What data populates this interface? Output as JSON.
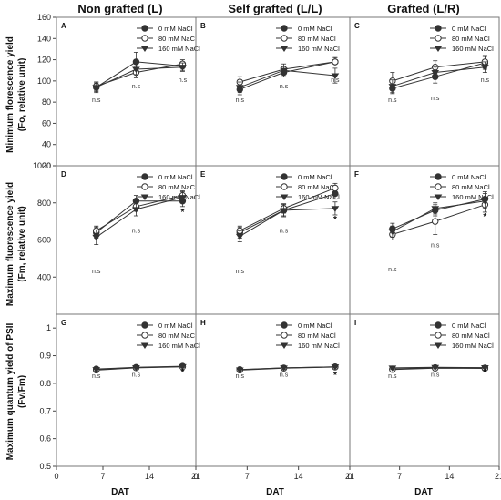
{
  "figure": {
    "column_titles": [
      "Non grafted (L)",
      "Self grafted (L/L)",
      "Grafted (L/R)"
    ],
    "row_ylabels": [
      [
        "Minimum florescence yield",
        "(Fo, relative unit)"
      ],
      [
        "Maximum fluorescence yield",
        "(Fm, relative unit)"
      ],
      [
        "Maximum quantum yield of PSII",
        "(Fv/Fm)"
      ]
    ],
    "xlabel": "DAT",
    "legend": [
      "0 mM NaCl",
      "80 mM NaCl",
      "160 mM NaCl"
    ],
    "colors": {
      "line": "#333333",
      "frame": "#777777",
      "text": "#111111"
    }
  },
  "chart_data": [
    {
      "panel": "A",
      "row": 0,
      "col": 0,
      "type": "line",
      "x": [
        6,
        12,
        19
      ],
      "ylim": [
        20,
        160
      ],
      "yticks": [
        20,
        40,
        60,
        80,
        100,
        120,
        140,
        160
      ],
      "xticks": [
        0,
        7,
        14,
        21
      ],
      "series": [
        {
          "name": "0 mM NaCl",
          "y": [
            94,
            118,
            114
          ],
          "err": [
            5,
            9,
            4
          ]
        },
        {
          "name": "80 mM NaCl",
          "y": [
            95,
            108,
            116
          ],
          "err": [
            4,
            5,
            4
          ]
        },
        {
          "name": "160 mM NaCl",
          "y": [
            94,
            111,
            113
          ],
          "err": [
            4,
            5,
            4
          ]
        }
      ],
      "annotations": [
        {
          "x": 6,
          "y": 80,
          "text": "n.s"
        },
        {
          "x": 12,
          "y": 93,
          "text": "n.s"
        },
        {
          "x": 19,
          "y": 99,
          "text": "n.s"
        }
      ]
    },
    {
      "panel": "B",
      "row": 0,
      "col": 1,
      "type": "line",
      "x": [
        6,
        12,
        19
      ],
      "ylim": [
        20,
        160
      ],
      "yticks": [
        20,
        40,
        60,
        80,
        100,
        120,
        140,
        160
      ],
      "xticks": [
        0,
        7,
        14,
        21
      ],
      "series": [
        {
          "name": "0 mM NaCl",
          "y": [
            92,
            108,
            118
          ],
          "err": [
            5,
            4,
            4
          ]
        },
        {
          "name": "80 mM NaCl",
          "y": [
            99,
            111,
            118
          ],
          "err": [
            5,
            5,
            4
          ]
        },
        {
          "name": "160 mM NaCl",
          "y": [
            94,
            110,
            105
          ],
          "err": [
            5,
            4,
            7
          ]
        }
      ],
      "annotations": [
        {
          "x": 6,
          "y": 80,
          "text": "n.s"
        },
        {
          "x": 12,
          "y": 93,
          "text": "n.s"
        },
        {
          "x": 19,
          "y": 99,
          "text": "n.s"
        }
      ]
    },
    {
      "panel": "C",
      "row": 0,
      "col": 2,
      "type": "line",
      "x": [
        6,
        12,
        19
      ],
      "ylim": [
        20,
        160
      ],
      "yticks": [
        20,
        40,
        60,
        80,
        100,
        120,
        140,
        160
      ],
      "xticks": [
        0,
        7,
        14,
        21
      ],
      "series": [
        {
          "name": "0 mM NaCl",
          "y": [
            93,
            104,
            117
          ],
          "err": [
            5,
            6,
            6
          ]
        },
        {
          "name": "80 mM NaCl",
          "y": [
            100,
            113,
            118
          ],
          "err": [
            8,
            6,
            6
          ]
        },
        {
          "name": "160 mM NaCl",
          "y": [
            95,
            108,
            113
          ],
          "err": [
            6,
            5,
            5
          ]
        }
      ],
      "annotations": [
        {
          "x": 6,
          "y": 80,
          "text": "n.s"
        },
        {
          "x": 12,
          "y": 82,
          "text": "n.s"
        },
        {
          "x": 19,
          "y": 99,
          "text": "n.s"
        }
      ]
    },
    {
      "panel": "D",
      "row": 1,
      "col": 0,
      "type": "line",
      "x": [
        6,
        12,
        19
      ],
      "ylim": [
        200,
        1000
      ],
      "yticks": [
        400,
        600,
        800,
        1000
      ],
      "xticks": [
        0,
        7,
        14,
        21
      ],
      "series": [
        {
          "name": "0 mM NaCl",
          "y": [
            640,
            810,
            810
          ],
          "err": [
            30,
            30,
            30
          ]
        },
        {
          "name": "80 mM NaCl",
          "y": [
            650,
            780,
            840
          ],
          "err": [
            25,
            25,
            25
          ]
        },
        {
          "name": "160 mM NaCl",
          "y": [
            615,
            765,
            830
          ],
          "err": [
            40,
            35,
            30
          ]
        }
      ],
      "annotations": [
        {
          "x": 6,
          "y": 420,
          "text": "n.s"
        },
        {
          "x": 12,
          "y": 640,
          "text": "n.s"
        },
        {
          "x": 19,
          "y": 735,
          "text": "*",
          "bold": true
        }
      ]
    },
    {
      "panel": "E",
      "row": 1,
      "col": 1,
      "type": "line",
      "x": [
        6,
        12,
        19
      ],
      "ylim": [
        200,
        1000
      ],
      "yticks": [
        400,
        600,
        800,
        1000
      ],
      "xticks": [
        0,
        7,
        14,
        21
      ],
      "series": [
        {
          "name": "0 mM NaCl",
          "y": [
            640,
            760,
            850
          ],
          "err": [
            30,
            30,
            30
          ]
        },
        {
          "name": "80 mM NaCl",
          "y": [
            650,
            770,
            880
          ],
          "err": [
            25,
            25,
            25
          ]
        },
        {
          "name": "160 mM NaCl",
          "y": [
            620,
            760,
            770
          ],
          "err": [
            30,
            35,
            35
          ]
        }
      ],
      "annotations": [
        {
          "x": 6,
          "y": 420,
          "text": "n.s"
        },
        {
          "x": 12,
          "y": 640,
          "text": "n.s"
        },
        {
          "x": 19,
          "y": 695,
          "text": "*",
          "bold": true
        }
      ]
    },
    {
      "panel": "F",
      "row": 1,
      "col": 2,
      "type": "line",
      "x": [
        6,
        12,
        19
      ],
      "ylim": [
        200,
        1000
      ],
      "yticks": [
        400,
        600,
        800,
        1000
      ],
      "xticks": [
        0,
        7,
        14,
        21
      ],
      "series": [
        {
          "name": "0 mM NaCl",
          "y": [
            660,
            760,
            820
          ],
          "err": [
            30,
            30,
            40
          ]
        },
        {
          "name": "80 mM NaCl",
          "y": [
            630,
            700,
            790
          ],
          "err": [
            30,
            70,
            40
          ]
        },
        {
          "name": "160 mM NaCl",
          "y": [
            645,
            770,
            810
          ],
          "err": [
            30,
            30,
            40
          ]
        }
      ],
      "annotations": [
        {
          "x": 6,
          "y": 430,
          "text": "n.s"
        },
        {
          "x": 12,
          "y": 560,
          "text": "n.s"
        },
        {
          "x": 19,
          "y": 710,
          "text": "*",
          "bold": true
        }
      ]
    },
    {
      "panel": "G",
      "row": 2,
      "col": 0,
      "type": "line",
      "x": [
        6,
        12,
        19
      ],
      "ylim": [
        0.5,
        1.05
      ],
      "yticks": [
        0.5,
        0.6,
        0.7,
        0.8,
        0.9,
        1.0
      ],
      "xticks": [
        0,
        7,
        14,
        21
      ],
      "series": [
        {
          "name": "0 mM NaCl",
          "y": [
            0.852,
            0.858,
            0.862
          ],
          "err": [
            0.006,
            0.005,
            0.004
          ]
        },
        {
          "name": "80 mM NaCl",
          "y": [
            0.848,
            0.856,
            0.86
          ],
          "err": [
            0.006,
            0.005,
            0.004
          ]
        },
        {
          "name": "160 mM NaCl",
          "y": [
            0.85,
            0.857,
            0.861
          ],
          "err": [
            0.006,
            0.005,
            0.004
          ]
        }
      ],
      "annotations": [
        {
          "x": 6,
          "y": 0.82,
          "text": "n.s"
        },
        {
          "x": 12,
          "y": 0.825,
          "text": "n.s"
        },
        {
          "x": 19,
          "y": 0.83,
          "text": "*",
          "bold": true
        }
      ]
    },
    {
      "panel": "H",
      "row": 2,
      "col": 1,
      "type": "line",
      "x": [
        6,
        12,
        19
      ],
      "ylim": [
        0.5,
        1.05
      ],
      "yticks": [
        0.5,
        0.6,
        0.7,
        0.8,
        0.9,
        1.0
      ],
      "xticks": [
        0,
        7,
        14,
        21
      ],
      "series": [
        {
          "name": "0 mM NaCl",
          "y": [
            0.85,
            0.856,
            0.86
          ],
          "err": [
            0.006,
            0.005,
            0.004
          ]
        },
        {
          "name": "80 mM NaCl",
          "y": [
            0.848,
            0.855,
            0.859
          ],
          "err": [
            0.006,
            0.005,
            0.004
          ]
        },
        {
          "name": "160 mM NaCl",
          "y": [
            0.849,
            0.856,
            0.86
          ],
          "err": [
            0.006,
            0.005,
            0.004
          ]
        }
      ],
      "annotations": [
        {
          "x": 6,
          "y": 0.82,
          "text": "n.s"
        },
        {
          "x": 12,
          "y": 0.825,
          "text": "n.s"
        },
        {
          "x": 19,
          "y": 0.82,
          "text": "*",
          "bold": true
        }
      ]
    },
    {
      "panel": "I",
      "row": 2,
      "col": 2,
      "type": "line",
      "x": [
        6,
        12,
        19
      ],
      "ylim": [
        0.5,
        1.05
      ],
      "yticks": [
        0.5,
        0.6,
        0.7,
        0.8,
        0.9,
        1.0
      ],
      "xticks": [
        0,
        7,
        14,
        21
      ],
      "series": [
        {
          "name": "0 mM NaCl",
          "y": [
            0.852,
            0.857,
            0.856
          ],
          "err": [
            0.006,
            0.005,
            0.004
          ]
        },
        {
          "name": "80 mM NaCl",
          "y": [
            0.85,
            0.855,
            0.854
          ],
          "err": [
            0.006,
            0.005,
            0.004
          ]
        },
        {
          "name": "160 mM NaCl",
          "y": [
            0.856,
            0.858,
            0.857
          ],
          "err": [
            0.006,
            0.005,
            0.004
          ]
        }
      ],
      "annotations": [
        {
          "x": 6,
          "y": 0.82,
          "text": "n.s"
        },
        {
          "x": 12,
          "y": 0.825,
          "text": "n.s"
        },
        {
          "x": 19,
          "y": 0.83,
          "text": "*",
          "bold": true
        }
      ]
    }
  ]
}
